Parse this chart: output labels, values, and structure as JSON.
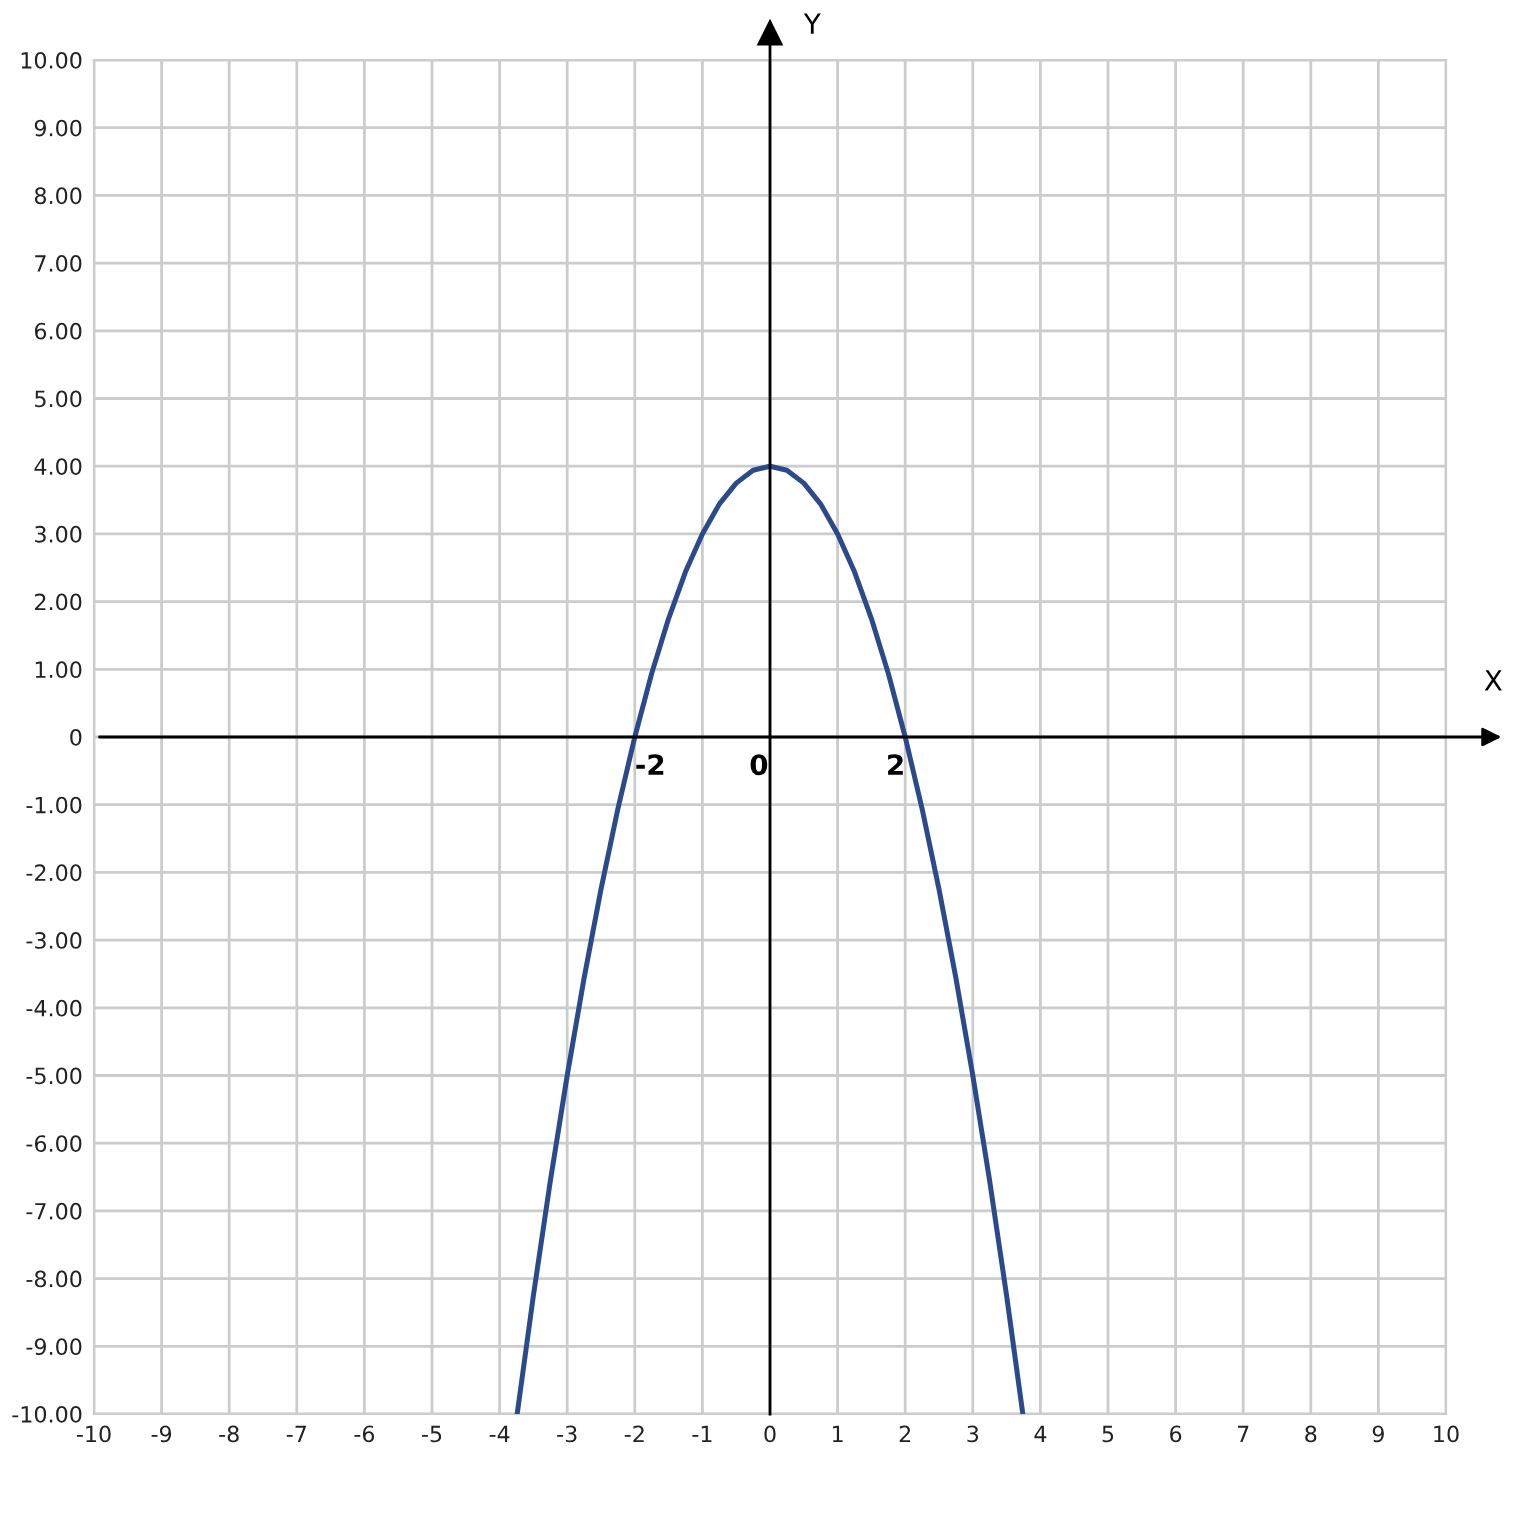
{
  "chart_data": {
    "type": "line",
    "xlabel": "X",
    "ylabel": "Y",
    "x": [
      -3.74,
      -3.5,
      -3.25,
      -3,
      -2.75,
      -2.5,
      -2.25,
      -2,
      -1.75,
      -1.5,
      -1.25,
      -1,
      -0.75,
      -0.5,
      -0.25,
      0,
      0.25,
      0.5,
      0.75,
      1,
      1.25,
      1.5,
      1.75,
      2,
      2.25,
      2.5,
      2.75,
      3,
      3.25,
      3.5,
      3.74
    ],
    "series": [
      {
        "color": "#2b4a8b",
        "values": [
          -10,
          -8.25,
          -6.56,
          -5,
          -3.56,
          -2.25,
          -1.06,
          0,
          0.94,
          1.75,
          2.44,
          3,
          3.44,
          3.75,
          3.94,
          4,
          3.94,
          3.75,
          3.44,
          3,
          2.44,
          1.75,
          0.94,
          0,
          -1.06,
          -2.25,
          -3.56,
          -5,
          -6.56,
          -8.25,
          -10
        ]
      }
    ],
    "xlim": [
      -10,
      10
    ],
    "ylim": [
      -10,
      10
    ],
    "xticks": [
      -10,
      -9,
      -8,
      -7,
      -6,
      -5,
      -4,
      -3,
      -2,
      -1,
      0,
      1,
      2,
      3,
      4,
      5,
      6,
      7,
      8,
      9,
      10
    ],
    "yticks": [
      {
        "value": -10,
        "label": "-10.00"
      },
      {
        "value": -9,
        "label": "-9.00"
      },
      {
        "value": -8,
        "label": "-8.00"
      },
      {
        "value": -7,
        "label": "-7.00"
      },
      {
        "value": -6,
        "label": "-6.00"
      },
      {
        "value": -5,
        "label": "-5.00"
      },
      {
        "value": -4,
        "label": "-4.00"
      },
      {
        "value": -3,
        "label": "-3.00"
      },
      {
        "value": -2,
        "label": "-2.00"
      },
      {
        "value": -1,
        "label": "-1.00"
      },
      0,
      {
        "value": 1,
        "label": "1.00"
      },
      {
        "value": 2,
        "label": "2.00"
      },
      {
        "value": 3,
        "label": "3.00"
      },
      {
        "value": 4,
        "label": "4.00"
      },
      {
        "value": 5,
        "label": "5.00"
      },
      {
        "value": 6,
        "label": "6.00"
      },
      {
        "value": 7,
        "label": "7.00"
      },
      {
        "value": 8,
        "label": "8.00"
      },
      {
        "value": 9,
        "label": "9.00"
      },
      {
        "value": 10,
        "label": "10.00"
      }
    ],
    "grid": true,
    "marker": "none",
    "line_style": "solid",
    "annotations": [
      {
        "text": "-2",
        "x": -2,
        "y": 0
      },
      "0",
      {
        "text": "2",
        "x": 2,
        "y": 0
      }
    ]
  }
}
